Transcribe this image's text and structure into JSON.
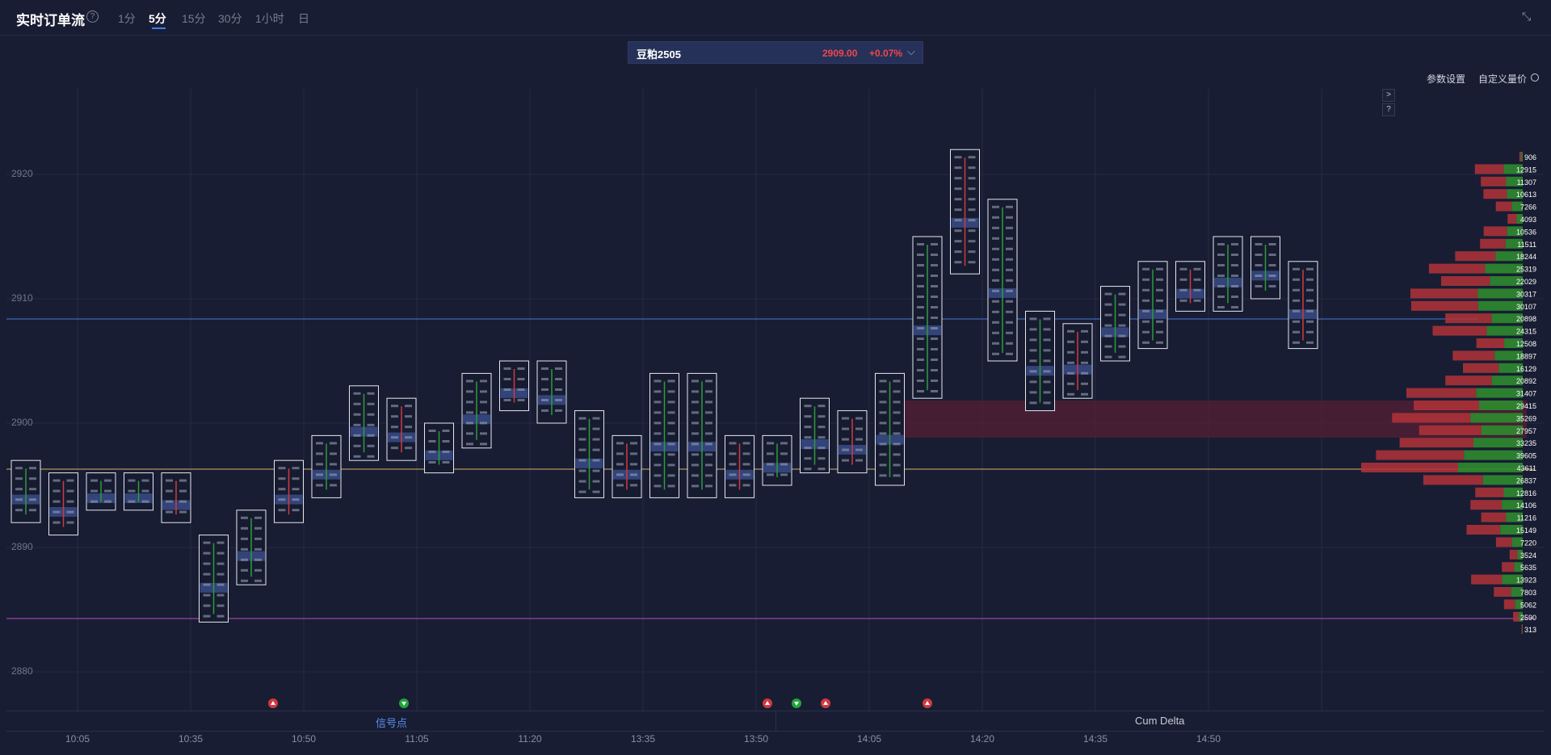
{
  "header": {
    "title": "实时订单流",
    "help_icon": "?",
    "timeframes": [
      "1分",
      "5分",
      "15分",
      "30分",
      "1小时",
      "日"
    ],
    "active_timeframe": "5分"
  },
  "symbol": {
    "name": "豆粕2505",
    "price": "2909.00",
    "change": "+0.07%"
  },
  "toolbar": {
    "settings_label": "参数设置",
    "custom_label": "自定义量价"
  },
  "side_buttons": [
    ">",
    "?"
  ],
  "legend": {
    "signal_label": "信号点",
    "cum_delta_label": "Cum Delta"
  },
  "colors": {
    "background": "#181d33",
    "bid": "#2e8b2e",
    "ask": "#d0393e",
    "poc_line": "#d9b16a",
    "current_price_line": "#4a78d8",
    "lower_line": "#c04bc0",
    "highlight_zone": "#5a1f33"
  },
  "chart_data": {
    "type": "footprint",
    "y_axis": {
      "ticks": [
        2920,
        2910,
        2900,
        2890,
        2880
      ]
    },
    "x_axis": {
      "ticks": [
        "10:05",
        "10:35",
        "10:50",
        "11:05",
        "11:20",
        "13:35",
        "13:50",
        "14:05",
        "14:20",
        "14:35",
        "14:50"
      ]
    },
    "candles": [
      {
        "high": 2897,
        "low": 2892
      },
      {
        "high": 2896,
        "low": 2891
      },
      {
        "high": 2896,
        "low": 2893
      },
      {
        "high": 2896,
        "low": 2893
      },
      {
        "high": 2896,
        "low": 2892
      },
      {
        "high": 2891,
        "low": 2884
      },
      {
        "high": 2893,
        "low": 2887
      },
      {
        "high": 2897,
        "low": 2892
      },
      {
        "high": 2899,
        "low": 2894
      },
      {
        "high": 2903,
        "low": 2897
      },
      {
        "high": 2902,
        "low": 2897
      },
      {
        "high": 2900,
        "low": 2896
      },
      {
        "high": 2904,
        "low": 2898
      },
      {
        "high": 2905,
        "low": 2901
      },
      {
        "high": 2905,
        "low": 2900
      },
      {
        "high": 2901,
        "low": 2894
      },
      {
        "high": 2899,
        "low": 2894
      },
      {
        "high": 2904,
        "low": 2894
      },
      {
        "high": 2904,
        "low": 2894
      },
      {
        "high": 2899,
        "low": 2894
      },
      {
        "high": 2899,
        "low": 2895
      },
      {
        "high": 2902,
        "low": 2896
      },
      {
        "high": 2901,
        "low": 2896
      },
      {
        "high": 2904,
        "low": 2895
      },
      {
        "high": 2915,
        "low": 2902
      },
      {
        "high": 2922,
        "low": 2912
      },
      {
        "high": 2918,
        "low": 2905
      },
      {
        "high": 2909,
        "low": 2901
      },
      {
        "high": 2908,
        "low": 2902
      },
      {
        "high": 2911,
        "low": 2905
      },
      {
        "high": 2913,
        "low": 2906
      },
      {
        "high": 2913,
        "low": 2909
      },
      {
        "high": 2915,
        "low": 2909
      },
      {
        "high": 2915,
        "low": 2910
      },
      {
        "high": 2913,
        "low": 2906
      }
    ],
    "volume_profile": [
      906,
      12915,
      11307,
      10613,
      7266,
      4093,
      10536,
      11511,
      18244,
      25319,
      22029,
      30317,
      30107,
      20898,
      24315,
      12508,
      18897,
      16129,
      20892,
      31407,
      29415,
      35269,
      27957,
      33235,
      39605,
      43611,
      26837,
      12816,
      14106,
      11216,
      15149,
      7220,
      3524,
      5635,
      13923,
      7803,
      5062,
      2590,
      313
    ],
    "signals": [
      {
        "time_index": 18,
        "type": "down"
      },
      {
        "time_index": 27,
        "type": "up"
      },
      {
        "time_index": 52,
        "type": "down"
      },
      {
        "time_index": 54,
        "type": "up"
      },
      {
        "time_index": 56,
        "type": "down"
      },
      {
        "time_index": 63,
        "type": "down"
      }
    ]
  }
}
